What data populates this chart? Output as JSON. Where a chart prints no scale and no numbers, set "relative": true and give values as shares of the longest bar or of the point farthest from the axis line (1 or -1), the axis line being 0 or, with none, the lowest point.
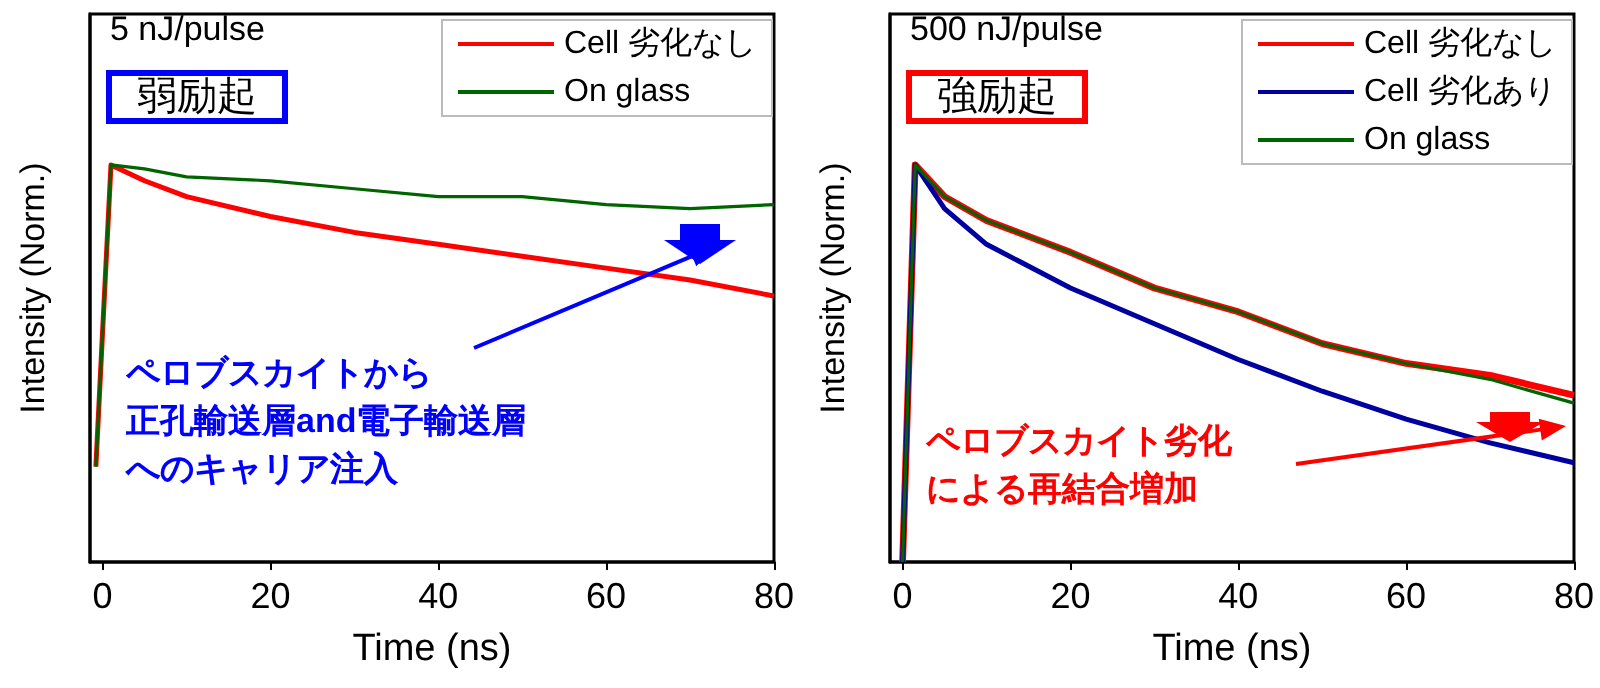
{
  "chart_data": [
    {
      "type": "line",
      "relative": true,
      "xlim": [
        -1.5,
        80
      ],
      "xticks": [
        0,
        20,
        40,
        60,
        80
      ],
      "tick_labels": "x",
      "xlabel": "Time (ns)",
      "ylabel": "Intensity (Norm.)",
      "legend": "top right",
      "marker": "none",
      "line_style": "solid",
      "annotations": [
        "5 nJ/pulse",
        "弱励起",
        "ペロブスカイトから",
        "正孔輸送層and電子輸送層",
        "へのキャリア注入"
      ],
      "series": [
        {
          "name": "Cell 劣化なし",
          "color": "#ff0000",
          "x": [
            -0.8,
            0,
            1,
            5,
            10,
            20,
            30,
            40,
            50,
            60,
            70,
            80
          ],
          "values": [
            0.24,
            0.58,
            1,
            0.96,
            0.92,
            0.87,
            0.83,
            0.8,
            0.77,
            0.74,
            0.71,
            0.67
          ]
        },
        {
          "name": "On glass",
          "color": "#006400",
          "x": [
            -0.8,
            0,
            1,
            5,
            10,
            20,
            30,
            40,
            50,
            60,
            70,
            80
          ],
          "values": [
            0.24,
            0.58,
            1,
            0.99,
            0.97,
            0.96,
            0.94,
            0.92,
            0.92,
            0.9,
            0.89,
            0.9
          ]
        }
      ]
    },
    {
      "type": "line",
      "relative": true,
      "xlim": [
        -1.5,
        80
      ],
      "xticks": [
        0,
        20,
        40,
        60,
        80
      ],
      "tick_labels": "x",
      "xlabel": "Time (ns)",
      "ylabel": "Intensity (Norm.)",
      "legend": "top right",
      "marker": "none",
      "line_style": "solid",
      "annotations": [
        "500 nJ/pulse",
        "強励起",
        "ペロブスカイト劣化",
        "による再結合増加"
      ],
      "series": [
        {
          "name": "Cell 劣化なし",
          "color": "#ff0000",
          "x": [
            0,
            1.5,
            5,
            10,
            20,
            30,
            40,
            50,
            60,
            70,
            80
          ],
          "values": [
            0,
            1,
            0.92,
            0.86,
            0.78,
            0.69,
            0.63,
            0.55,
            0.5,
            0.47,
            0.42
          ]
        },
        {
          "name": "Cell 劣化あり",
          "color": "#0000a0",
          "x": [
            0,
            1.5,
            5,
            10,
            20,
            30,
            40,
            50,
            60,
            70,
            80
          ],
          "values": [
            0,
            1,
            0.89,
            0.8,
            0.69,
            0.6,
            0.51,
            0.43,
            0.36,
            0.3,
            0.25
          ]
        },
        {
          "name": "On glass",
          "color": "#006400",
          "x": [
            0,
            1.5,
            5,
            10,
            20,
            30,
            40,
            50,
            60,
            70,
            80
          ],
          "values": [
            0,
            1,
            0.92,
            0.86,
            0.78,
            0.69,
            0.63,
            0.55,
            0.5,
            0.46,
            0.4
          ]
        }
      ]
    }
  ]
}
